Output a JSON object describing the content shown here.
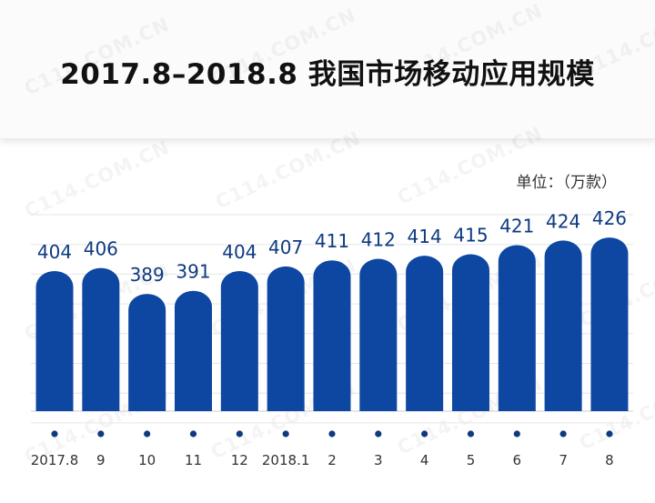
{
  "chart_data": {
    "type": "bar",
    "title": "2017.8–2018.8 我国市场移动应用规模",
    "unit": "单位：（万款）",
    "categories": [
      "2017.8",
      "9",
      "10",
      "11",
      "12",
      "2018.1",
      "2",
      "3",
      "4",
      "5",
      "6",
      "7",
      "8"
    ],
    "values": [
      404,
      406,
      389,
      391,
      404,
      407,
      411,
      412,
      414,
      415,
      421,
      424,
      426
    ],
    "xlabel": "",
    "ylabel": "",
    "grid": true,
    "bar_color": "#0d47a1",
    "label_color": "#0d3a80"
  },
  "watermark": "C114.COM.CN"
}
